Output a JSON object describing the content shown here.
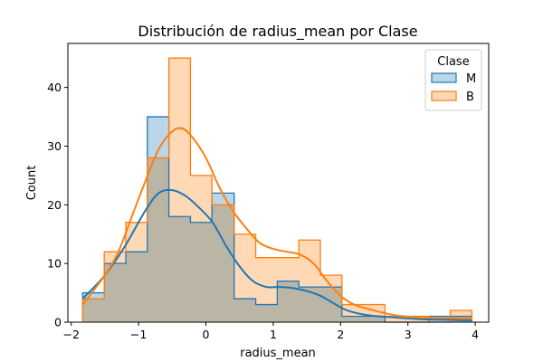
{
  "chart_data": {
    "type": "histogram",
    "title": "Distribución de radius_mean por Clase",
    "xlabel": "radius_mean",
    "ylabel": "Count",
    "xlim": [
      -2.05,
      4.2
    ],
    "ylim": [
      0,
      47.5
    ],
    "xticks": [
      -2,
      -1,
      0,
      1,
      2,
      3,
      4
    ],
    "xtick_labels": [
      "−2",
      "−1",
      "0",
      "1",
      "2",
      "3",
      "4"
    ],
    "yticks": [
      0,
      10,
      20,
      30,
      40
    ],
    "ytick_labels": [
      "0",
      "10",
      "20",
      "30",
      "40"
    ],
    "bin_edges": [
      -1.83,
      -1.51,
      -1.19,
      -0.87,
      -0.55,
      -0.23,
      0.09,
      0.42,
      0.74,
      1.06,
      1.38,
      1.7,
      2.02,
      2.34,
      2.66,
      2.99,
      3.31,
      3.63,
      3.95
    ],
    "legend": {
      "title": "Clase",
      "position": "top-right"
    },
    "series": [
      {
        "name": "M",
        "color": "#1f77b4",
        "counts": [
          5,
          10,
          12,
          35,
          18,
          17,
          22,
          4,
          3,
          7,
          6,
          6,
          1,
          1,
          0,
          0,
          1,
          1
        ],
        "kde": [
          [
            -1.83,
            4
          ],
          [
            -1.5,
            8
          ],
          [
            -1.2,
            13
          ],
          [
            -0.9,
            19
          ],
          [
            -0.7,
            22
          ],
          [
            -0.5,
            22.5
          ],
          [
            -0.3,
            21.5
          ],
          [
            -0.1,
            19.5
          ],
          [
            0.1,
            17
          ],
          [
            0.3,
            13
          ],
          [
            0.5,
            9.5
          ],
          [
            0.7,
            7
          ],
          [
            0.9,
            6
          ],
          [
            1.1,
            6
          ],
          [
            1.3,
            5.8
          ],
          [
            1.5,
            5.3
          ],
          [
            1.7,
            4.5
          ],
          [
            1.9,
            3.2
          ],
          [
            2.1,
            2
          ],
          [
            2.4,
            1.2
          ],
          [
            2.8,
            0.8
          ],
          [
            3.2,
            0.5
          ],
          [
            3.6,
            0.4
          ],
          [
            3.95,
            0.3
          ]
        ]
      },
      {
        "name": "B",
        "color": "#ff7f0e",
        "counts": [
          4,
          12,
          17,
          28,
          45,
          25,
          20,
          15,
          11,
          11,
          14,
          8,
          3,
          3,
          1,
          1,
          0,
          2
        ],
        "kde": [
          [
            -1.83,
            3
          ],
          [
            -1.5,
            8
          ],
          [
            -1.3,
            12
          ],
          [
            -1.1,
            18
          ],
          [
            -0.9,
            24
          ],
          [
            -0.7,
            29.5
          ],
          [
            -0.5,
            32.5
          ],
          [
            -0.35,
            33
          ],
          [
            -0.2,
            31.5
          ],
          [
            0,
            28
          ],
          [
            0.2,
            23
          ],
          [
            0.4,
            19
          ],
          [
            0.6,
            16
          ],
          [
            0.8,
            13.5
          ],
          [
            1,
            12.5
          ],
          [
            1.2,
            12
          ],
          [
            1.4,
            11.5
          ],
          [
            1.6,
            10
          ],
          [
            1.8,
            7
          ],
          [
            2,
            4.5
          ],
          [
            2.2,
            3
          ],
          [
            2.5,
            2
          ],
          [
            2.8,
            1.2
          ],
          [
            3.2,
            0.8
          ],
          [
            3.6,
            0.7
          ],
          [
            3.95,
            0.6
          ]
        ]
      }
    ]
  }
}
